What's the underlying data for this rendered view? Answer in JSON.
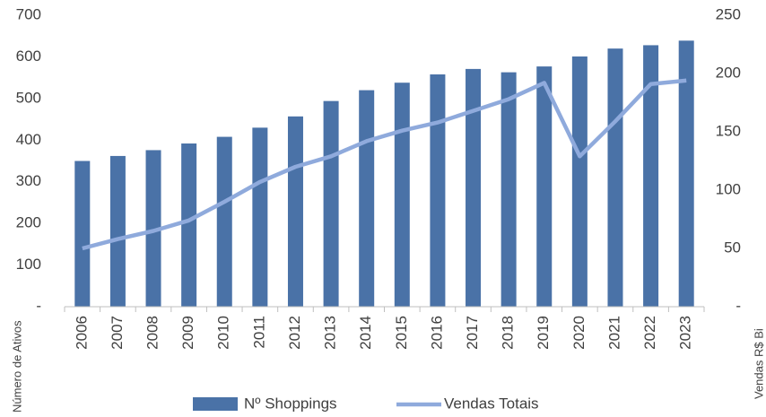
{
  "chart_data": {
    "type": "bar",
    "categories": [
      "2006",
      "2007",
      "2008",
      "2009",
      "2010",
      "2011",
      "2012",
      "2013",
      "2014",
      "2015",
      "2016",
      "2017",
      "2018",
      "2019",
      "2020",
      "2021",
      "2022",
      "2023"
    ],
    "series": [
      {
        "name": "Nº Shoppings",
        "type": "bar",
        "color": "#4a72a7",
        "values": [
          350,
          362,
          376,
          392,
          408,
          430,
          457,
          494,
          520,
          538,
          558,
          571,
          563,
          577,
          601,
          620,
          628,
          639
        ]
      },
      {
        "name": "Vendas Totais",
        "type": "line",
        "axis": "y2",
        "color": "#8faadc",
        "values": [
          50,
          58,
          65,
          74,
          90,
          107,
          120,
          129,
          142,
          151,
          158,
          168,
          178,
          192,
          129,
          159,
          191,
          194
        ]
      }
    ],
    "ylabel": "Número de Ativos",
    "y2label": "Vendas R$ Bi",
    "ylim": [
      0,
      700
    ],
    "yticks": [
      {
        "value": 0,
        "label": "-"
      },
      100,
      200,
      300,
      400,
      500,
      600,
      700
    ],
    "y2lim": [
      0,
      250
    ],
    "y2ticks": [
      {
        "value": 0,
        "label": "-"
      },
      50,
      100,
      150,
      200,
      250
    ],
    "legend": "bottom"
  }
}
